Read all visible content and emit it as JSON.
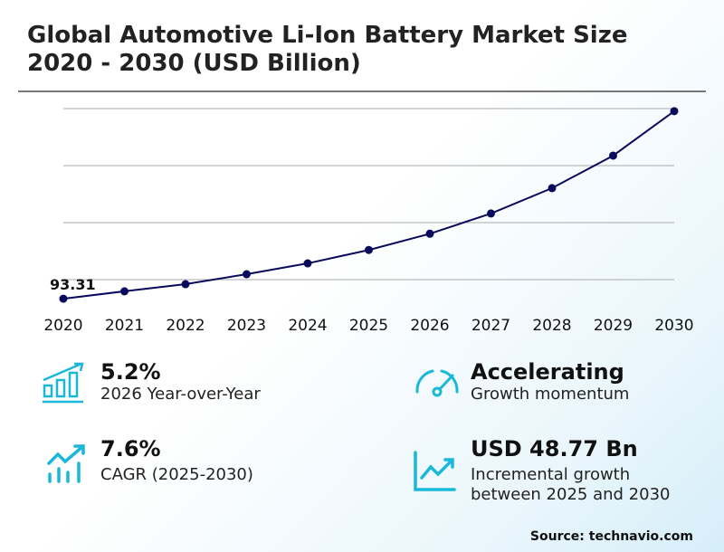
{
  "title_line1": "Global Automotive Li-Ion Battery Market Size",
  "title_line2": "2020 - 2030 (USD Billion)",
  "chart_data": {
    "type": "line",
    "title": "Global Automotive Li-Ion Battery Market Size 2020 - 2030 (USD Billion)",
    "categories": [
      "2020",
      "2021",
      "2022",
      "2023",
      "2024",
      "2025",
      "2026",
      "2027",
      "2028",
      "2029",
      "2030"
    ],
    "values": [
      93.31,
      95.9,
      98.4,
      101.9,
      105.7,
      110.4,
      116.1,
      123.2,
      132.1,
      143.5,
      159.1
    ],
    "data_labels": {
      "0": "93.31"
    },
    "ylim": [
      90,
      162
    ],
    "gridlines": [
      100,
      120,
      140,
      160
    ],
    "grid": true,
    "line_color": "#0a0a5c",
    "xlabel": "",
    "ylabel": ""
  },
  "kpis": [
    {
      "value": "5.2%",
      "label": "2026 Year-over-Year",
      "icon": "bar-chart-growth-icon"
    },
    {
      "value": "Accelerating",
      "label": "Growth momentum",
      "icon": "speedometer-icon"
    },
    {
      "value": "7.6%",
      "label": "CAGR (2025-2030)",
      "icon": "trend-up-bars-icon"
    },
    {
      "value": "USD 48.77 Bn",
      "label": "Incremental growth",
      "label2": "between 2025 and 2030",
      "icon": "line-chart-up-icon"
    }
  ],
  "accent_color": "#1ab8d8",
  "source": "Source: technavio.com"
}
